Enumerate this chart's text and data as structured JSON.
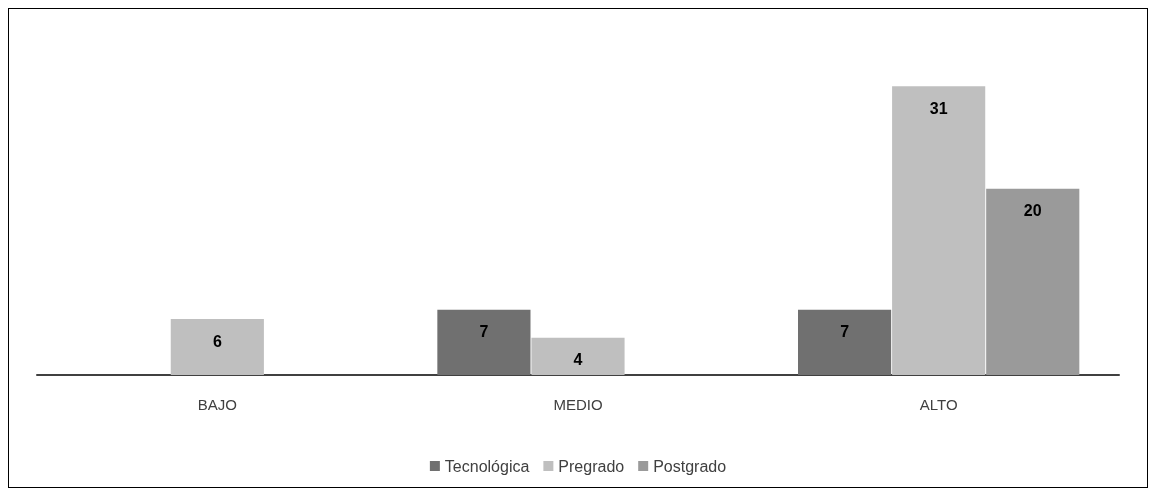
{
  "chart_data": {
    "type": "bar",
    "categories": [
      "BAJO",
      "MEDIO",
      "ALTO"
    ],
    "series": [
      {
        "name": "Tecnológica",
        "color": "#707070",
        "values": [
          null,
          7,
          7
        ]
      },
      {
        "name": "Pregrado",
        "color": "#bfbfbf",
        "values": [
          6,
          4,
          31
        ]
      },
      {
        "name": "Postgrado",
        "color": "#9a9a9a",
        "values": [
          null,
          null,
          20
        ]
      }
    ],
    "data_labels": true,
    "grid": false,
    "legend": "bottom"
  }
}
